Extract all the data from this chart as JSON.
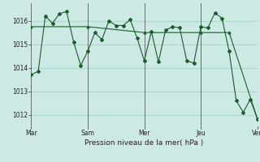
{
  "background_color": "#cce9e4",
  "grid_color": "#aad4cc",
  "line_color": "#1a5c2a",
  "xlabel": "Pression niveau de la mer( hPa )",
  "ylim": [
    1011.5,
    1016.75
  ],
  "yticks": [
    1012,
    1013,
    1014,
    1015,
    1016
  ],
  "xlim": [
    0,
    192
  ],
  "day_ticks_x": [
    0,
    48,
    96,
    144,
    192
  ],
  "day_labels": [
    "Mar",
    "Sam",
    "Mer",
    "Jeu",
    "Ven"
  ],
  "series1_x": [
    0,
    6,
    12,
    18,
    24,
    30,
    36,
    42,
    48,
    54,
    60,
    66,
    72,
    78,
    84,
    90,
    96,
    102,
    108,
    114,
    120,
    126,
    132,
    138,
    144,
    150,
    156,
    162,
    168,
    174,
    180,
    186,
    192
  ],
  "series1_y": [
    1013.7,
    1013.85,
    1016.2,
    1015.9,
    1016.3,
    1016.4,
    1015.1,
    1014.1,
    1014.7,
    1015.5,
    1015.2,
    1016.0,
    1015.8,
    1015.8,
    1016.05,
    1015.25,
    1014.3,
    1015.55,
    1014.25,
    1015.6,
    1015.75,
    1015.7,
    1014.3,
    1014.2,
    1015.75,
    1015.7,
    1016.35,
    1016.1,
    1014.7,
    1012.6,
    1012.1,
    1012.65,
    1011.82
  ],
  "series2_x": [
    0,
    48,
    96,
    144,
    168,
    192
  ],
  "series2_y": [
    1015.75,
    1015.75,
    1015.5,
    1015.5,
    1015.5,
    1011.82
  ]
}
